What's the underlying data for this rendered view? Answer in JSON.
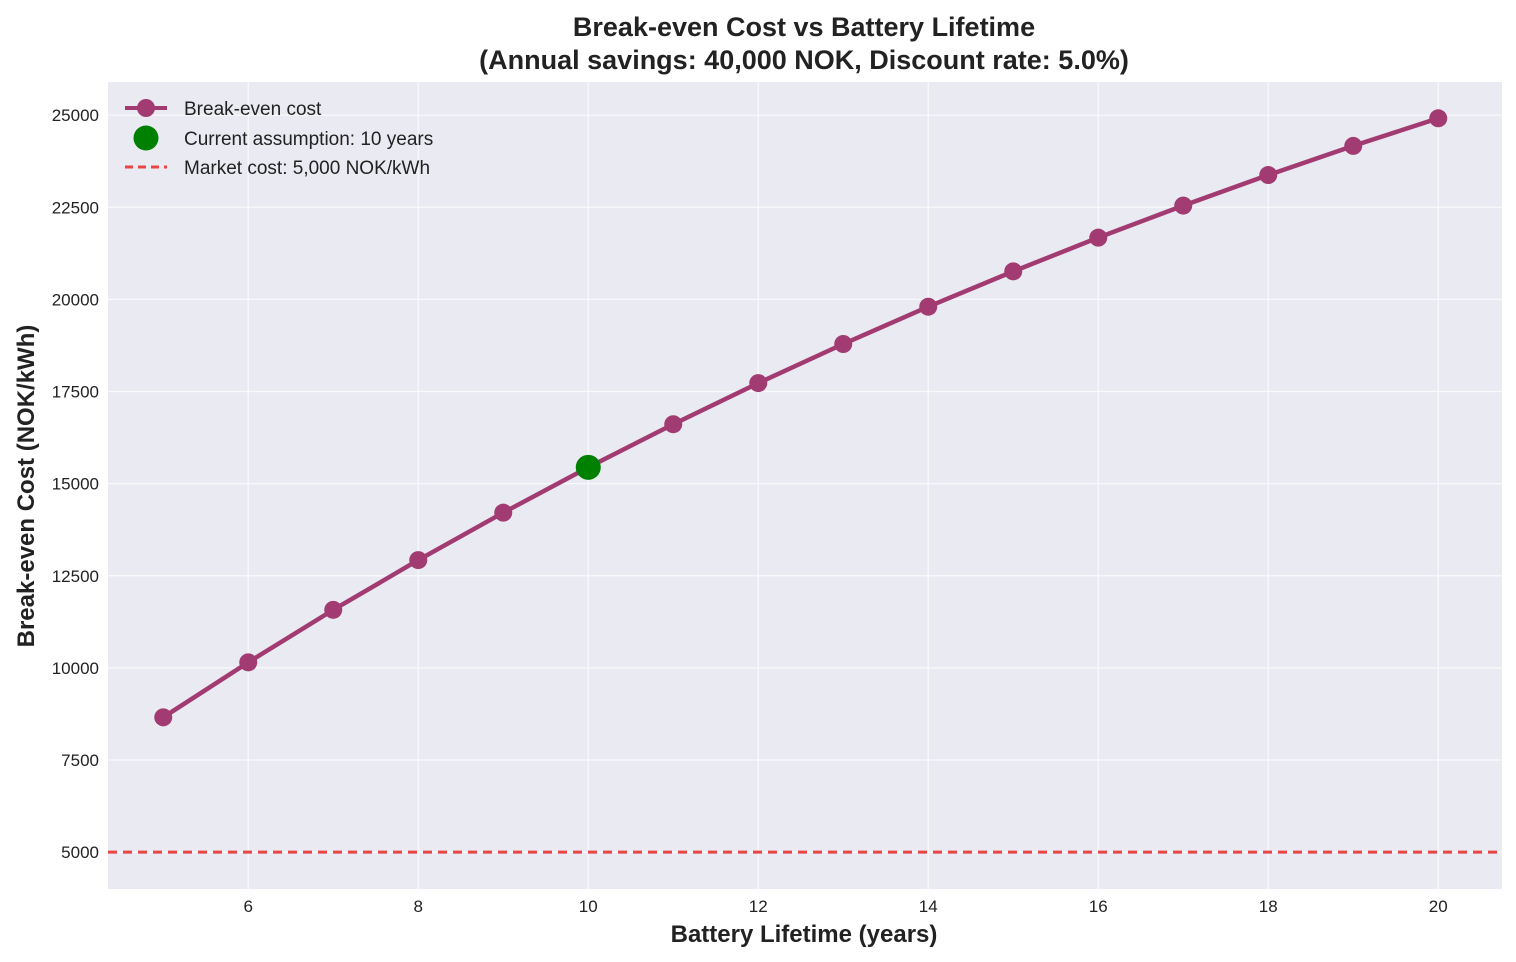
{
  "chart_data": {
    "type": "line",
    "title_line1": "Break-even Cost vs Battery Lifetime",
    "title_line2": "(Annual savings: 40,000 NOK, Discount rate: 5.0%)",
    "xlabel": "Battery Lifetime (years)",
    "ylabel": "Break-even Cost (NOK/kWh)",
    "xlim": [
      4.35,
      20.75
    ],
    "ylim": [
      4000,
      25900
    ],
    "xticks": [
      6,
      8,
      10,
      12,
      14,
      16,
      18,
      20
    ],
    "yticks": [
      5000,
      7500,
      10000,
      12500,
      15000,
      17500,
      20000,
      22500,
      25000
    ],
    "grid": true,
    "legend_position": "top-left",
    "series": [
      {
        "name": "Break-even cost",
        "color": "#A23B72",
        "x": [
          5,
          6,
          7,
          8,
          9,
          10,
          11,
          12,
          13,
          14,
          15,
          16,
          17,
          18,
          19,
          20
        ],
        "y": [
          8659,
          10151,
          11575,
          12925,
          14213,
          15443,
          16613,
          17729,
          18790,
          19802,
          20761,
          21676,
          22546,
          23375,
          24165,
          24916
        ]
      }
    ],
    "highlight": {
      "name": "Current assumption: 10 years",
      "color": "#008000",
      "x": 10,
      "y": 15443
    },
    "reference_line": {
      "name": "Market cost: 5,000 NOK/kWh",
      "color": "#E84545",
      "y": 5000,
      "style": "dashed"
    }
  }
}
